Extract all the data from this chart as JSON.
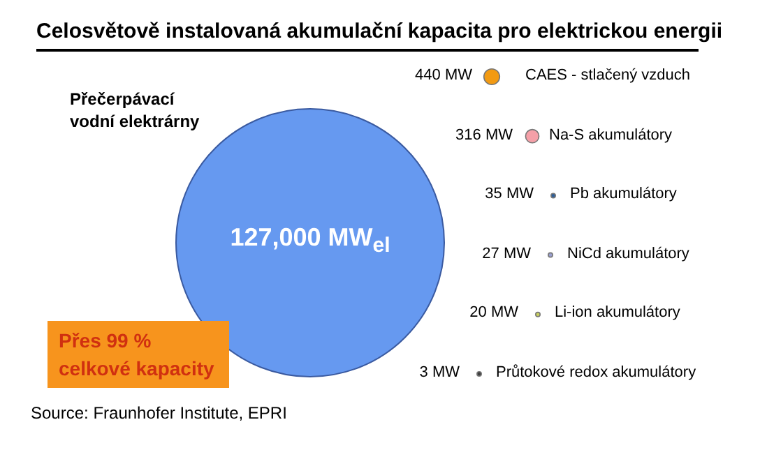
{
  "chart_data": {
    "type": "other",
    "title": "Celosvětově instalovaná akumulační kapacita pro elektrickou energii",
    "categories": [
      "Přečerpávací vodní elektrárny",
      "CAES - stlačený vzduch",
      "Na-S akumulátory",
      "Pb akumulátory",
      "NiCd akumulátory",
      "Li-ion akumulátory",
      "Průtokové redox akumulátory"
    ],
    "values": [
      127000,
      440,
      316,
      35,
      27,
      20,
      3
    ],
    "value_labels": [
      "127,000 MW$_{el}$",
      "440 MW",
      "316 MW",
      "35 MW",
      "27 MW",
      "20 MW",
      "3 MW"
    ],
    "colors": [
      "#6699f0",
      "#f29a12",
      "#f5a0a8",
      "#2f5f9a",
      "#9aa0d0",
      "#c8d060",
      "#404040"
    ],
    "annotations": [
      "Přes 99 % celkové kapacity",
      "Source: Fraunhofer Institute, EPRI"
    ]
  }
}
